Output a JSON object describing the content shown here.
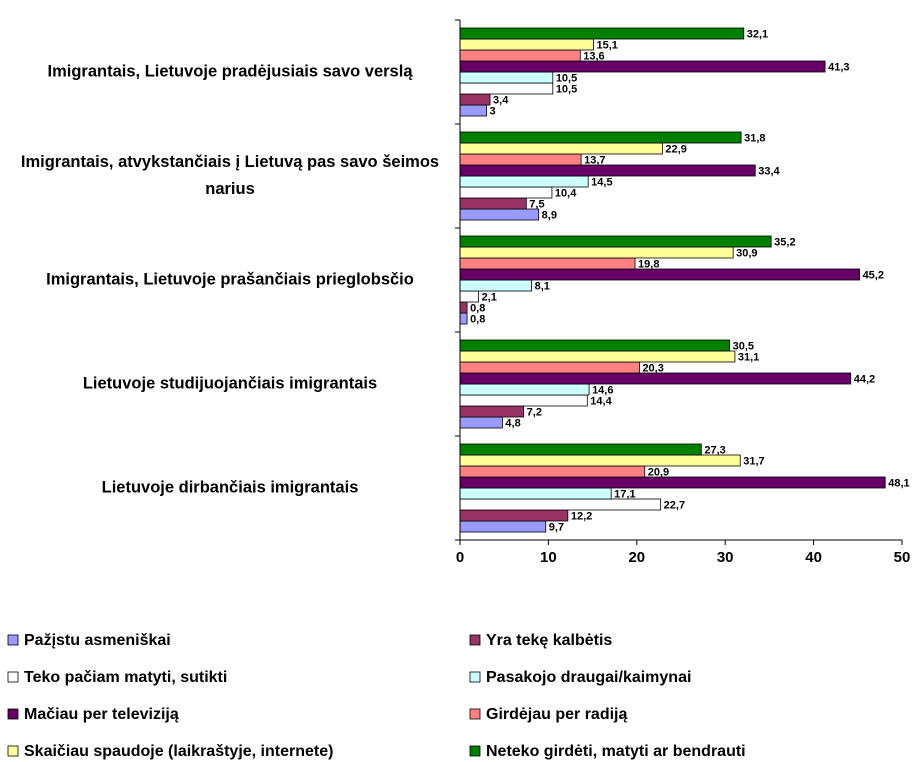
{
  "chart_data": {
    "type": "bar",
    "orientation": "horizontal",
    "categories": [
      "Imigrantais, Lietuvoje pradėjusiais savo verslą",
      "Imigrantais, atvykstančiais į Lietuvą pas savo šeimos narius",
      "Imigrantais, Lietuvoje prašančiais prieglobsčio",
      "Lietuvoje studijuojančiais imigrantais",
      "Lietuvoje dirbančiais imigrantais"
    ],
    "series": [
      {
        "name": "Pažįstu asmeniškai",
        "color": "#9999ff",
        "values": [
          3,
          8.9,
          0.8,
          4.8,
          9.7
        ],
        "value_labels": [
          "3",
          "8,9",
          "0,8",
          "4,8",
          "9,7"
        ]
      },
      {
        "name": "Yra tekę kalbėtis",
        "color": "#993366",
        "values": [
          3.4,
          7.5,
          0.8,
          7.2,
          12.2
        ],
        "value_labels": [
          "3,4",
          "7,5",
          "0,8",
          "7,2",
          "12,2"
        ]
      },
      {
        "name": "Teko pačiam matyti, sutikti",
        "color": "#ffffff",
        "values": [
          10.5,
          10.4,
          2.1,
          14.4,
          22.7
        ],
        "value_labels": [
          "10,5",
          "10,4",
          "2,1",
          "14,4",
          "22,7"
        ]
      },
      {
        "name": "Pasakojo draugai/kaimynai",
        "color": "#ccffff",
        "values": [
          10.5,
          14.5,
          8.1,
          14.6,
          17.1
        ],
        "value_labels": [
          "10,5",
          "14,5",
          "8,1",
          "14,6",
          "17,1"
        ]
      },
      {
        "name": "Mačiau per televiziją",
        "color": "#660066",
        "values": [
          41.3,
          33.4,
          45.2,
          44.2,
          48.1
        ],
        "value_labels": [
          "41,3",
          "33,4",
          "45,2",
          "44,2",
          "48,1"
        ]
      },
      {
        "name": "Girdėjau per radiją",
        "color": "#ff8080",
        "values": [
          13.6,
          13.7,
          19.8,
          20.3,
          20.9
        ],
        "value_labels": [
          "13,6",
          "13,7",
          "19,8",
          "20,3",
          "20,9"
        ]
      },
      {
        "name": "Skaičiau spaudoje (laikraštyje, internete)",
        "color": "#ffff99",
        "values": [
          15.1,
          22.9,
          30.9,
          31.1,
          31.7
        ],
        "value_labels": [
          "15,1",
          "22,9",
          "30,9",
          "31,1",
          "31,7"
        ]
      },
      {
        "name": "Neteko girdėti, matyti ar bendrauti",
        "color": "#008000",
        "values": [
          32.1,
          31.8,
          35.2,
          30.5,
          27.3
        ],
        "value_labels": [
          "32,1",
          "31,8",
          "35,2",
          "30,5",
          "27,3"
        ]
      }
    ],
    "xlim": [
      0,
      50
    ],
    "xticks": [
      0,
      10,
      20,
      30,
      40,
      50
    ],
    "legend": "bottom"
  }
}
